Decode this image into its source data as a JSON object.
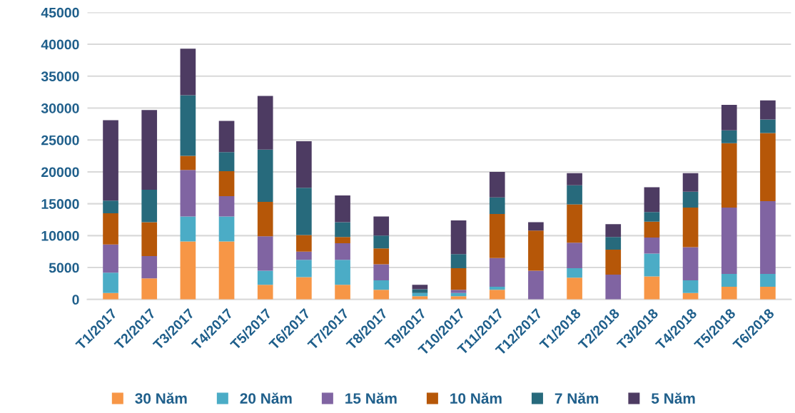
{
  "chart_data": {
    "type": "bar",
    "stacked": true,
    "categories": [
      "T1/2017",
      "T2/2017",
      "T3/2017",
      "T4/2017",
      "T5/2017",
      "T6/2017",
      "T7/2017",
      "T8/2017",
      "T9/2017",
      "T10/2017",
      "T11/2017",
      "T12/2017",
      "T1/2018",
      "T2/2018",
      "T3/2018",
      "T4/2018",
      "T5/2018",
      "T6/2018"
    ],
    "series": [
      {
        "name": "30 Năm",
        "color": "#f79646",
        "values": [
          1000,
          3300,
          9100,
          9100,
          2300,
          3500,
          2300,
          1500,
          500,
          500,
          1500,
          0,
          3400,
          0,
          3600,
          1000,
          2000,
          2000
        ]
      },
      {
        "name": "20 Năm",
        "color": "#4bacc6",
        "values": [
          3200,
          0,
          3900,
          3900,
          2200,
          2700,
          3900,
          1500,
          500,
          500,
          500,
          0,
          1500,
          0,
          3600,
          2000,
          2000,
          2000
        ]
      },
      {
        "name": "15 Năm",
        "color": "#8064a2",
        "values": [
          4400,
          3500,
          7300,
          3200,
          5400,
          1300,
          2600,
          2500,
          0,
          500,
          4500,
          4500,
          4000,
          3900,
          2500,
          5200,
          10400,
          11400
        ]
      },
      {
        "name": "10 Năm",
        "color": "#b65708",
        "values": [
          4900,
          5300,
          2200,
          3900,
          5400,
          2600,
          1000,
          2500,
          0,
          3400,
          6900,
          6300,
          6000,
          3900,
          2500,
          6200,
          10100,
          10700
        ]
      },
      {
        "name": "7 Năm",
        "color": "#276a7c",
        "values": [
          2000,
          5100,
          9500,
          3000,
          8200,
          7400,
          2300,
          2000,
          600,
          2200,
          2600,
          0,
          3000,
          2000,
          1500,
          2500,
          2000,
          2100
        ]
      },
      {
        "name": "5 Năm",
        "color": "#4d3b62",
        "values": [
          12600,
          12500,
          7300,
          4900,
          8400,
          7300,
          4200,
          3000,
          700,
          5300,
          4000,
          1300,
          1900,
          2000,
          3900,
          2900,
          4000,
          3000
        ]
      }
    ],
    "ylim": [
      0,
      45000
    ],
    "yticks": [
      0,
      5000,
      10000,
      15000,
      20000,
      25000,
      30000,
      35000,
      40000,
      45000
    ],
    "grid": "y",
    "legend": "bottom"
  }
}
